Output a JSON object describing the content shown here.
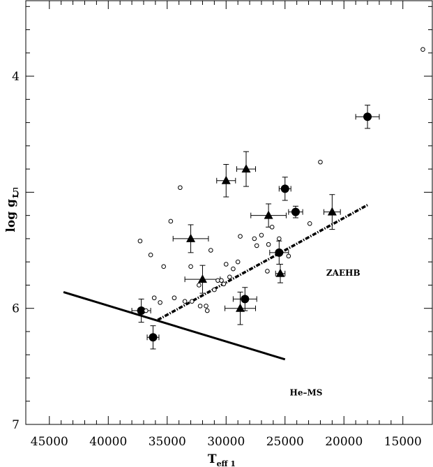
{
  "chart_data": {
    "type": "scatter",
    "title": "",
    "xlabel": {
      "main": "T",
      "sub": "eff 1"
    },
    "ylabel": {
      "main": "log g",
      "sub": "1"
    },
    "xlim": [
      47000,
      12500
    ],
    "ylim": [
      7.0,
      3.35
    ],
    "x_reversed": true,
    "y_reversed": true,
    "x_ticks": [
      45000,
      40000,
      35000,
      30000,
      25000,
      20000,
      15000
    ],
    "x_tick_labels": [
      "45000",
      "40000",
      "35000",
      "30000",
      "25000",
      "20000",
      "15000"
    ],
    "y_ticks": [
      4,
      5,
      6,
      7
    ],
    "y_tick_labels": [
      "4",
      "5",
      "6",
      "7"
    ],
    "grid": false,
    "series": [
      {
        "marker": "filled-circle",
        "points": [
          {
            "x": 37200,
            "y": 6.02,
            "xerr": 800,
            "yerr": 0.1
          },
          {
            "x": 36200,
            "y": 6.25,
            "xerr": 500,
            "yerr": 0.1
          },
          {
            "x": 28400,
            "y": 5.92,
            "xerr": 1000,
            "yerr": 0.1
          },
          {
            "x": 25500,
            "y": 5.52,
            "xerr": 800,
            "yerr": 0.1
          },
          {
            "x": 25000,
            "y": 4.97,
            "xerr": 500,
            "yerr": 0.1
          },
          {
            "x": 24100,
            "y": 5.17,
            "xerr": 600,
            "yerr": 0.05
          },
          {
            "x": 18000,
            "y": 4.35,
            "xerr": 1000,
            "yerr": 0.1
          }
        ]
      },
      {
        "marker": "filled-triangle",
        "points": [
          {
            "x": 33000,
            "y": 5.4,
            "xerr": 1500,
            "yerr": 0.12
          },
          {
            "x": 32000,
            "y": 5.75,
            "xerr": 1500,
            "yerr": 0.12
          },
          {
            "x": 30000,
            "y": 4.9,
            "xerr": 800,
            "yerr": 0.14
          },
          {
            "x": 28800,
            "y": 6.0,
            "xerr": 1300,
            "yerr": 0.14
          },
          {
            "x": 28300,
            "y": 4.8,
            "xerr": 800,
            "yerr": 0.15
          },
          {
            "x": 26400,
            "y": 5.2,
            "xerr": 1500,
            "yerr": 0.1
          },
          {
            "x": 25400,
            "y": 5.7,
            "xerr": 400,
            "yerr": 0.08
          },
          {
            "x": 21000,
            "y": 5.17,
            "xerr": 700,
            "yerr": 0.15
          }
        ]
      },
      {
        "marker": "open-circle",
        "points": [
          {
            "x": 37300,
            "y": 5.42
          },
          {
            "x": 36400,
            "y": 5.54
          },
          {
            "x": 35300,
            "y": 5.64
          },
          {
            "x": 34700,
            "y": 5.25
          },
          {
            "x": 33900,
            "y": 4.96
          },
          {
            "x": 33000,
            "y": 5.64
          },
          {
            "x": 32300,
            "y": 5.8
          },
          {
            "x": 31300,
            "y": 5.5
          },
          {
            "x": 30700,
            "y": 5.76
          },
          {
            "x": 30400,
            "y": 5.76
          },
          {
            "x": 30200,
            "y": 5.79
          },
          {
            "x": 30000,
            "y": 5.62
          },
          {
            "x": 29700,
            "y": 5.73
          },
          {
            "x": 29400,
            "y": 5.66
          },
          {
            "x": 29000,
            "y": 5.6
          },
          {
            "x": 28800,
            "y": 5.38
          },
          {
            "x": 27600,
            "y": 5.4
          },
          {
            "x": 27400,
            "y": 5.46
          },
          {
            "x": 27000,
            "y": 5.37
          },
          {
            "x": 26400,
            "y": 5.45
          },
          {
            "x": 26100,
            "y": 5.3
          },
          {
            "x": 26500,
            "y": 5.68
          },
          {
            "x": 25500,
            "y": 5.4
          },
          {
            "x": 24700,
            "y": 5.55
          },
          {
            "x": 22900,
            "y": 5.27
          },
          {
            "x": 22000,
            "y": 4.74
          },
          {
            "x": 13300,
            "y": 3.77
          },
          {
            "x": 36800,
            "y": 6.02
          },
          {
            "x": 36100,
            "y": 5.91
          },
          {
            "x": 35600,
            "y": 5.95
          },
          {
            "x": 34400,
            "y": 5.91
          },
          {
            "x": 33500,
            "y": 5.94
          },
          {
            "x": 32900,
            "y": 5.94
          },
          {
            "x": 32200,
            "y": 5.98
          },
          {
            "x": 31700,
            "y": 5.98
          },
          {
            "x": 31600,
            "y": 6.02
          },
          {
            "x": 31000,
            "y": 5.84
          }
        ]
      }
    ],
    "lines": [
      {
        "style": "solid",
        "label": "He-MS",
        "points": [
          {
            "x": 43800,
            "y": 5.86
          },
          {
            "x": 25000,
            "y": 6.44
          }
        ]
      },
      {
        "style": "dash-dot",
        "label": "ZAEHB",
        "points": [
          {
            "x": 35800,
            "y": 6.1
          },
          {
            "x": 18000,
            "y": 5.11
          }
        ]
      }
    ],
    "annotations": [
      {
        "text": "ZAEHB",
        "x": 21500,
        "y": 5.72
      },
      {
        "text": "He–MS",
        "x": 24600,
        "y": 6.75
      }
    ]
  }
}
